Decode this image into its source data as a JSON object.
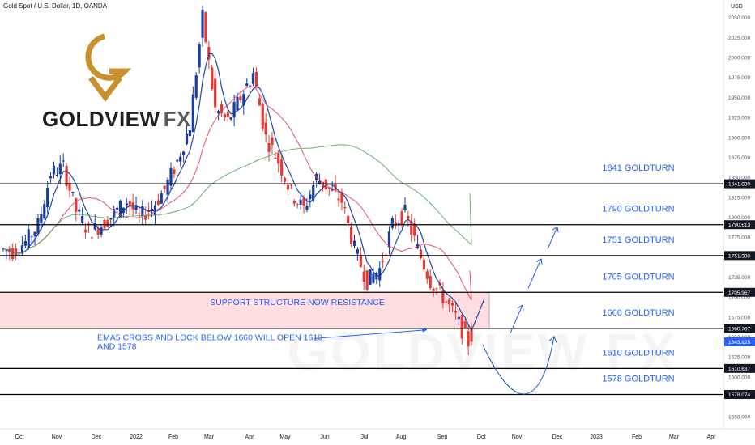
{
  "header": {
    "title": "Gold Spot / U.S. Dollar, 1D, OANDA",
    "currency": "USD"
  },
  "logo": {
    "brand": "GOLDVIEW",
    "suffix": "FX",
    "watermark": "GOLDVIEW FX"
  },
  "annotations": {
    "support_note": "SUPPORT STRUCTURE NOW RESISTANCE",
    "ema_note_line1": "EMA5 CROSS AND LOCK BELOW 1660 WILL OPEN 1610",
    "ema_note_line2": "AND 1578"
  },
  "chart_data": {
    "type": "line",
    "title": "Gold Spot / U.S. Dollar, 1D, OANDA",
    "ylabel": "USD",
    "ylim": [
      1535,
      2072
    ],
    "y_ticks": [
      1550,
      1575,
      1600,
      1625,
      1650,
      1675,
      1700,
      1725,
      1750,
      1775,
      1800,
      1825,
      1850,
      1875,
      1900,
      1925,
      1950,
      1975,
      2000,
      2025,
      2050
    ],
    "x_ticks": [
      "Oct",
      "Nov",
      "Dec",
      "2022",
      "Feb",
      "Mar",
      "Apr",
      "May",
      "Jun",
      "Jul",
      "Aug",
      "Sep",
      "Oct",
      "Nov",
      "Dec",
      "2023",
      "Feb",
      "Mar",
      "Apr"
    ],
    "last_price": 1643.925,
    "goldturn_levels": [
      {
        "label": "1841 GOLDTURN",
        "value": 1841.889,
        "price_label": "1841.889"
      },
      {
        "label": "1790 GOLDTURN",
        "value": 1790.613,
        "price_label": "1790.613"
      },
      {
        "label": "1751 GOLDTURN",
        "value": 1751.988,
        "price_label": "1751.988"
      },
      {
        "label": "1705 GOLDTURN",
        "value": 1705.967,
        "price_label": "1705.967"
      },
      {
        "label": "1660 GOLDTURN",
        "value": 1660.767,
        "price_label": "1660.767"
      },
      {
        "label": "1610 GOLDTURN",
        "value": 1610.637,
        "price_label": "1610.637"
      },
      {
        "label": "1578 GOLDTURN",
        "value": 1578.074,
        "price_label": "1578.074"
      }
    ],
    "resistance_zone": [
      1660.767,
      1705.967
    ],
    "price_series": {
      "name": "",
      "x": [
        "Oct",
        "Oct",
        "Oct",
        "Nov",
        "Nov",
        "Nov",
        "Nov",
        "Dec",
        "Dec",
        "Dec",
        "2022",
        "2022",
        "Feb",
        "Feb",
        "Feb",
        "Mar",
        "Mar",
        "Mar",
        "Mar",
        "Apr",
        "Apr",
        "Apr",
        "May",
        "May",
        "May",
        "Jun",
        "Jun",
        "Jun",
        "Jul",
        "Jul",
        "Jul",
        "Aug",
        "Aug",
        "Aug",
        "Sep",
        "Sep",
        "Sep",
        "Sep"
      ],
      "values": [
        1760,
        1757,
        1769,
        1790,
        1855,
        1863,
        1808,
        1782,
        1790,
        1805,
        1820,
        1800,
        1812,
        1835,
        1870,
        1915,
        2050,
        1935,
        1920,
        1950,
        1980,
        1900,
        1870,
        1830,
        1810,
        1850,
        1835,
        1820,
        1760,
        1720,
        1735,
        1790,
        1805,
        1760,
        1720,
        1700,
        1675,
        1643
      ]
    },
    "ema_series": [
      {
        "name": "",
        "color": "#1a3e9f"
      },
      {
        "name": "",
        "color": "#e0405e"
      },
      {
        "name": "",
        "color": "#43a047"
      }
    ],
    "projection_arrows": [
      {
        "points": [
          [
            1690,
            1655
          ],
          [
            1700,
            1722
          ],
          [
            1717,
            1779
          ],
          [
            1735,
            1790
          ]
        ],
        "color": "#1e5fcf"
      },
      {
        "points": [
          [
            1660,
            1643
          ],
          [
            1595,
            1617
          ],
          [
            1585,
            1630
          ],
          [
            1655,
            1663
          ]
        ],
        "color": "#1e5fcf"
      }
    ]
  },
  "colors": {
    "level_line": "#000000",
    "level_text": "#2962ff",
    "zone_fill": "#ffcdd2",
    "candle_up": "#1a3e9f",
    "candle_down": "#e53935",
    "last_price_bg": "#2962ff",
    "logo_gold": "#c8912e"
  }
}
